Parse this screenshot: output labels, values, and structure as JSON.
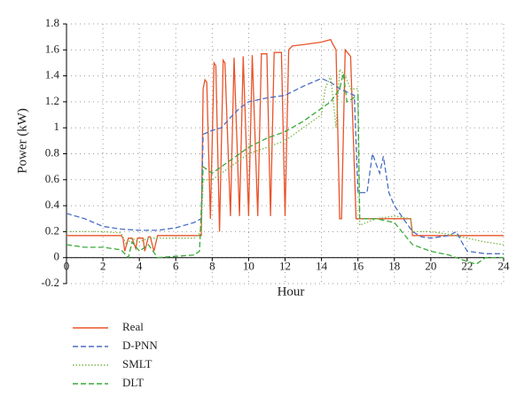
{
  "chart_data": {
    "type": "line",
    "xlabel": "Hour",
    "ylabel": "Power (kW)",
    "xlim": [
      0,
      24
    ],
    "xticks": [
      0,
      2,
      4,
      6,
      8,
      10,
      12,
      14,
      16,
      18,
      20,
      22,
      24
    ],
    "ylim": [
      -0.2,
      1.8
    ],
    "yticks": [
      -0.2,
      0,
      0.2,
      0.4,
      0.6,
      0.8,
      1,
      1.2,
      1.4,
      1.6,
      1.8
    ],
    "grid": true,
    "legend": "below-left",
    "series": [
      {
        "name": "Real",
        "color": "#e8542a",
        "style": "solid",
        "x": [
          0,
          3,
          3.1,
          3.2,
          3.4,
          3.6,
          3.8,
          3.9,
          4.2,
          4.3,
          4.5,
          4.6,
          4.8,
          5,
          7.4,
          7.5,
          7.6,
          7.7,
          7.9,
          8.1,
          8.2,
          8.4,
          8.6,
          8.7,
          9.0,
          9.2,
          9.5,
          9.7,
          10,
          10.2,
          10.5,
          10.7,
          11,
          11.2,
          11.4,
          11.8,
          12.0,
          12.2,
          12.4,
          13,
          14,
          14.5,
          14.6,
          14.8,
          15,
          15.1,
          15.3,
          15.6,
          15.9,
          18.9,
          19,
          24
        ],
        "values": [
          0.17,
          0.17,
          0.15,
          0.05,
          0.15,
          0.15,
          0.07,
          0.15,
          0.15,
          0.05,
          0.16,
          0.16,
          0.05,
          0.17,
          0.17,
          1.3,
          1.37,
          1.35,
          0.3,
          1.5,
          1.48,
          0.2,
          1.52,
          1.5,
          0.32,
          1.54,
          0.32,
          1.55,
          0.32,
          1.56,
          0.32,
          1.57,
          1.57,
          0.32,
          1.58,
          1.58,
          0.32,
          1.6,
          1.63,
          1.64,
          1.66,
          1.68,
          1.65,
          1.6,
          0.3,
          0.3,
          1.6,
          1.55,
          0.3,
          0.3,
          0.17,
          0.17
        ]
      },
      {
        "name": "D-PNN",
        "color": "#4a6fc4",
        "style": "dashed",
        "x": [
          0,
          1,
          2,
          3,
          4,
          5,
          6,
          7,
          7.4,
          7.5,
          8,
          8.5,
          9,
          9.5,
          10,
          11,
          12,
          13,
          14,
          14.5,
          15,
          15.8,
          16,
          16.5,
          16.8,
          17,
          17.2,
          17.4,
          17.7,
          18,
          18.5,
          19,
          19.5,
          20,
          21,
          21.4,
          21.7,
          22,
          22.5,
          23,
          24
        ],
        "values": [
          0.34,
          0.3,
          0.24,
          0.22,
          0.21,
          0.21,
          0.23,
          0.27,
          0.3,
          0.95,
          0.98,
          1.0,
          1.08,
          1.15,
          1.2,
          1.23,
          1.25,
          1.32,
          1.38,
          1.35,
          1.3,
          1.25,
          0.5,
          0.5,
          0.8,
          0.72,
          0.65,
          0.78,
          0.5,
          0.4,
          0.3,
          0.2,
          0.16,
          0.15,
          0.17,
          0.2,
          0.12,
          0.05,
          0.04,
          0.03,
          0.03
        ]
      },
      {
        "name": "SMLT",
        "color": "#7bb548",
        "style": "dotted",
        "x": [
          0,
          2,
          3,
          3.3,
          3.6,
          4,
          4.5,
          5,
          6,
          7,
          7.4,
          7.5,
          8,
          8.5,
          9,
          10,
          11,
          12,
          13,
          14,
          14.2,
          14.5,
          14.8,
          15,
          15.3,
          15.6,
          16,
          16.1,
          17,
          18,
          18.9,
          19,
          20,
          21,
          22,
          23,
          24
        ],
        "values": [
          0.2,
          0.2,
          0.19,
          0.1,
          0.15,
          0.12,
          0.15,
          0.15,
          0.15,
          0.15,
          0.2,
          0.6,
          0.6,
          0.65,
          0.7,
          0.8,
          0.85,
          0.9,
          1.0,
          1.1,
          1.3,
          1.4,
          1.0,
          1.45,
          1.4,
          1.3,
          1.3,
          0.25,
          0.3,
          0.32,
          0.3,
          0.2,
          0.2,
          0.18,
          0.15,
          0.12,
          0.1
        ]
      },
      {
        "name": "DLT",
        "color": "#3aaa3a",
        "style": "dashed",
        "x": [
          0,
          1,
          2,
          3,
          3.4,
          3.6,
          4,
          4.5,
          5,
          6,
          7,
          7.3,
          7.5,
          8,
          9,
          10,
          11,
          12,
          13,
          14,
          14.5,
          15,
          15.2,
          15.4,
          16,
          16.1,
          17,
          18,
          19,
          20,
          21,
          22,
          22.5,
          23,
          24
        ],
        "values": [
          0.1,
          0.08,
          0.08,
          0.06,
          0.0,
          0.12,
          0.05,
          0.1,
          0.0,
          0.01,
          0.02,
          0.05,
          0.7,
          0.65,
          0.75,
          0.85,
          0.92,
          0.97,
          1.05,
          1.15,
          1.2,
          1.3,
          1.42,
          1.2,
          1.25,
          0.3,
          0.3,
          0.27,
          0.1,
          0.05,
          0.02,
          -0.03,
          -0.05,
          0.0,
          0.0
        ]
      }
    ]
  }
}
